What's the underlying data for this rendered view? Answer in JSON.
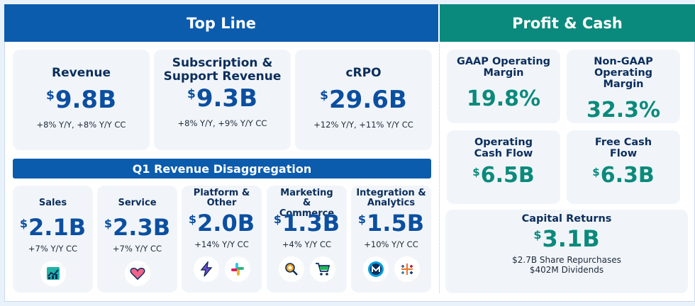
{
  "sections": {
    "top_line": "Top Line",
    "profit_cash": "Profit & Cash",
    "disaggregation": "Q1 Revenue Disaggregation"
  },
  "top_line": [
    {
      "title": "Revenue",
      "value": "9.8B",
      "growth": "+8% Y/Y, +8% Y/Y CC"
    },
    {
      "title": "Subscription & Support Revenue",
      "value": "9.3B",
      "growth": "+8% Y/Y, +9% Y/Y CC"
    },
    {
      "title": "cRPO",
      "value": "29.6B",
      "growth": "+12% Y/Y, +11% Y/Y CC"
    }
  ],
  "disaggregation": [
    {
      "title": "Sales",
      "value": "2.1B",
      "growth": "+7% Y/Y CC",
      "icons": [
        "sales-chart-icon"
      ]
    },
    {
      "title": "Service",
      "value": "2.3B",
      "growth": "+7% Y/Y CC",
      "icons": [
        "heart-icon"
      ]
    },
    {
      "title": "Platform & Other",
      "value": "2.0B",
      "growth": "+14% Y/Y CC",
      "icons": [
        "lightning-icon",
        "slack-icon"
      ]
    },
    {
      "title": "Marketing & Commerce",
      "value": "1.3B",
      "growth": "+4% Y/Y CC",
      "icons": [
        "magnifier-icon",
        "shopping-cart-icon"
      ]
    },
    {
      "title": "Integration & Analytics",
      "value": "1.5B",
      "growth": "+10% Y/Y CC",
      "icons": [
        "mulesoft-icon",
        "tableau-icon"
      ]
    }
  ],
  "profit_cash": {
    "gaap_margin": {
      "title": "GAAP Operating Margin",
      "value": "19.8%"
    },
    "non_gaap_margin": {
      "title": "Non-GAAP Operating Margin",
      "value": "32.3%"
    },
    "operating_cash_flow": {
      "title": "Operating Cash Flow",
      "value": "6.5B"
    },
    "free_cash_flow": {
      "title": "Free Cash Flow",
      "value": "6.3B"
    },
    "capital_returns": {
      "title": "Capital Returns",
      "value": "3.1B",
      "repurchases": "$2.7B Share Repurchases",
      "dividends": "$402M Dividends"
    }
  },
  "currency_symbol": "$",
  "colors": {
    "blue": "#0b5cad",
    "teal": "#0a8a7c"
  }
}
